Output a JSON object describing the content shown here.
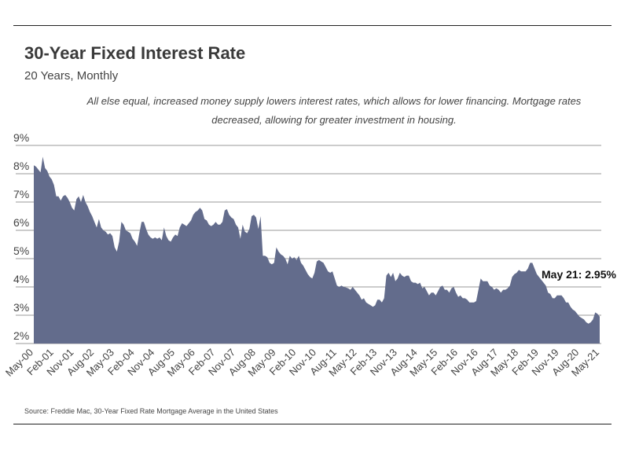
{
  "header": {
    "title": "30-Year Fixed Interest Rate",
    "subtitle": "20 Years, Monthly",
    "note": "All else equal, increased money supply lowers interest rates, which allows for lower financing. Mortgage rates decreased, allowing for greater investment in housing."
  },
  "footer": {
    "source": "Source:  Freddie Mac, 30-Year Fixed Rate Mortgage Average in the United States"
  },
  "colors": {
    "area_fill": "#636c8c",
    "gridline": "#999999",
    "rule": "#222222"
  },
  "chart_data": {
    "type": "area",
    "title": "30-Year Fixed Interest Rate",
    "subtitle": "20 Years, Monthly",
    "ylim": [
      2,
      9
    ],
    "y_ticks": [
      "9%",
      "8%",
      "7%",
      "6%",
      "5%",
      "4%",
      "3%",
      "2%"
    ],
    "y_tick_values": [
      9,
      8,
      7,
      6,
      5,
      4,
      3,
      2
    ],
    "x_ticks": [
      "May-00",
      "Feb-01",
      "Nov-01",
      "Aug-02",
      "May-03",
      "Feb-04",
      "Nov-04",
      "Aug-05",
      "May-06",
      "Feb-07",
      "Nov-07",
      "Aug-08",
      "May-09",
      "Feb-10",
      "Nov-10",
      "Aug-11",
      "May-12",
      "Feb-13",
      "Nov-13",
      "Aug-14",
      "May-15",
      "Feb-16",
      "Nov-16",
      "Aug-17",
      "May-18",
      "Feb-19",
      "Nov-19",
      "Aug-20",
      "May-21"
    ],
    "grid": "horizontal",
    "annotation": {
      "label": "May 21: 2.95%",
      "x": "May-21",
      "y": 2.95
    },
    "series": [
      {
        "points": [
          [
            "May-00",
            8.3
          ],
          [
            "Jun-00",
            8.25
          ],
          [
            "Jul-00",
            8.15
          ],
          [
            "Aug-00",
            8.05
          ],
          [
            "Sep-00",
            8.6
          ],
          [
            "Oct-00",
            8.2
          ],
          [
            "Nov-00",
            8.1
          ],
          [
            "Dec-00",
            7.9
          ],
          [
            "Jan-01",
            7.8
          ],
          [
            "Feb-01",
            7.6
          ],
          [
            "Mar-01",
            7.2
          ],
          [
            "Apr-01",
            7.2
          ],
          [
            "May-01",
            7.05
          ],
          [
            "Jun-01",
            7.2
          ],
          [
            "Jul-01",
            7.25
          ],
          [
            "Aug-01",
            7.15
          ],
          [
            "Sep-01",
            7.0
          ],
          [
            "Oct-01",
            6.8
          ],
          [
            "Nov-01",
            6.7
          ],
          [
            "Dec-01",
            7.1
          ],
          [
            "Jan-02",
            7.2
          ],
          [
            "Feb-02",
            7.0
          ],
          [
            "Mar-02",
            7.25
          ],
          [
            "Apr-02",
            7.0
          ],
          [
            "May-02",
            6.85
          ],
          [
            "Jun-02",
            6.65
          ],
          [
            "Jul-02",
            6.5
          ],
          [
            "Aug-02",
            6.3
          ],
          [
            "Sep-02",
            6.1
          ],
          [
            "Oct-02",
            6.4
          ],
          [
            "Nov-02",
            6.1
          ],
          [
            "Dec-02",
            6.0
          ],
          [
            "Jan-03",
            5.95
          ],
          [
            "Feb-03",
            5.85
          ],
          [
            "Mar-03",
            5.9
          ],
          [
            "Apr-03",
            5.8
          ],
          [
            "May-03",
            5.4
          ],
          [
            "Jun-03",
            5.25
          ],
          [
            "Jul-03",
            5.6
          ],
          [
            "Aug-03",
            6.3
          ],
          [
            "Sep-03",
            6.2
          ],
          [
            "Oct-03",
            6.0
          ],
          [
            "Nov-03",
            5.95
          ],
          [
            "Dec-03",
            5.9
          ],
          [
            "Jan-04",
            5.7
          ],
          [
            "Feb-04",
            5.6
          ],
          [
            "Mar-04",
            5.45
          ],
          [
            "Apr-04",
            5.9
          ],
          [
            "May-04",
            6.3
          ],
          [
            "Jun-04",
            6.3
          ],
          [
            "Jul-04",
            6.05
          ],
          [
            "Aug-04",
            5.85
          ],
          [
            "Sep-04",
            5.75
          ],
          [
            "Oct-04",
            5.7
          ],
          [
            "Nov-04",
            5.75
          ],
          [
            "Dec-04",
            5.7
          ],
          [
            "Jan-05",
            5.75
          ],
          [
            "Feb-05",
            5.65
          ],
          [
            "Mar-05",
            6.1
          ],
          [
            "Apr-05",
            5.8
          ],
          [
            "May-05",
            5.65
          ],
          [
            "Jun-05",
            5.6
          ],
          [
            "Jul-05",
            5.75
          ],
          [
            "Aug-05",
            5.85
          ],
          [
            "Sep-05",
            5.8
          ],
          [
            "Oct-05",
            6.1
          ],
          [
            "Nov-05",
            6.25
          ],
          [
            "Dec-05",
            6.2
          ],
          [
            "Jan-06",
            6.15
          ],
          [
            "Feb-06",
            6.25
          ],
          [
            "Mar-06",
            6.35
          ],
          [
            "Apr-06",
            6.55
          ],
          [
            "May-06",
            6.65
          ],
          [
            "Jun-06",
            6.7
          ],
          [
            "Jul-06",
            6.8
          ],
          [
            "Aug-06",
            6.7
          ],
          [
            "Sep-06",
            6.4
          ],
          [
            "Oct-06",
            6.35
          ],
          [
            "Nov-06",
            6.2
          ],
          [
            "Dec-06",
            6.15
          ],
          [
            "Jan-07",
            6.2
          ],
          [
            "Feb-07",
            6.3
          ],
          [
            "Mar-07",
            6.2
          ],
          [
            "Apr-07",
            6.2
          ],
          [
            "May-07",
            6.3
          ],
          [
            "Jun-07",
            6.7
          ],
          [
            "Jul-07",
            6.75
          ],
          [
            "Aug-07",
            6.55
          ],
          [
            "Sep-07",
            6.45
          ],
          [
            "Oct-07",
            6.4
          ],
          [
            "Nov-07",
            6.2
          ],
          [
            "Dec-07",
            6.1
          ],
          [
            "Jan-08",
            5.7
          ],
          [
            "Feb-08",
            6.2
          ],
          [
            "Mar-08",
            5.95
          ],
          [
            "Apr-08",
            5.9
          ],
          [
            "May-08",
            6.05
          ],
          [
            "Jun-08",
            6.5
          ],
          [
            "Jul-08",
            6.55
          ],
          [
            "Aug-08",
            6.45
          ],
          [
            "Sep-08",
            6.05
          ],
          [
            "Oct-08",
            6.5
          ],
          [
            "Nov-08",
            5.1
          ],
          [
            "Dec-08",
            5.1
          ],
          [
            "Jan-09",
            5.05
          ],
          [
            "Feb-09",
            4.85
          ],
          [
            "Mar-09",
            4.8
          ],
          [
            "Apr-09",
            4.85
          ],
          [
            "May-09",
            5.4
          ],
          [
            "Jun-09",
            5.25
          ],
          [
            "Jul-09",
            5.15
          ],
          [
            "Aug-09",
            5.1
          ],
          [
            "Sep-09",
            5.0
          ],
          [
            "Oct-09",
            4.8
          ],
          [
            "Nov-09",
            5.1
          ],
          [
            "Dec-09",
            5.0
          ],
          [
            "Jan-10",
            5.05
          ],
          [
            "Feb-10",
            4.95
          ],
          [
            "Mar-10",
            5.1
          ],
          [
            "Apr-10",
            4.85
          ],
          [
            "May-10",
            4.75
          ],
          [
            "Jun-10",
            4.6
          ],
          [
            "Jul-10",
            4.45
          ],
          [
            "Aug-10",
            4.35
          ],
          [
            "Sep-10",
            4.3
          ],
          [
            "Oct-10",
            4.5
          ],
          [
            "Nov-10",
            4.9
          ],
          [
            "Dec-10",
            4.95
          ],
          [
            "Jan-11",
            4.9
          ],
          [
            "Feb-11",
            4.85
          ],
          [
            "Mar-11",
            4.7
          ],
          [
            "Apr-11",
            4.55
          ],
          [
            "May-11",
            4.5
          ],
          [
            "Jun-11",
            4.55
          ],
          [
            "Jul-11",
            4.3
          ],
          [
            "Aug-11",
            4.05
          ],
          [
            "Sep-11",
            4.0
          ],
          [
            "Oct-11",
            4.05
          ],
          [
            "Nov-11",
            4.0
          ],
          [
            "Dec-11",
            3.98
          ],
          [
            "Jan-12",
            3.95
          ],
          [
            "Feb-12",
            3.9
          ],
          [
            "Mar-12",
            4.0
          ],
          [
            "Apr-12",
            3.9
          ],
          [
            "May-12",
            3.8
          ],
          [
            "Jun-12",
            3.7
          ],
          [
            "Jul-12",
            3.55
          ],
          [
            "Aug-12",
            3.6
          ],
          [
            "Sep-12",
            3.45
          ],
          [
            "Oct-12",
            3.4
          ],
          [
            "Nov-12",
            3.35
          ],
          [
            "Dec-12",
            3.3
          ],
          [
            "Jan-13",
            3.35
          ],
          [
            "Feb-13",
            3.55
          ],
          [
            "Mar-13",
            3.55
          ],
          [
            "Apr-13",
            3.45
          ],
          [
            "May-13",
            3.6
          ],
          [
            "Jun-13",
            4.4
          ],
          [
            "Jul-13",
            4.5
          ],
          [
            "Aug-13",
            4.35
          ],
          [
            "Sep-13",
            4.5
          ],
          [
            "Oct-13",
            4.2
          ],
          [
            "Nov-13",
            4.3
          ],
          [
            "Dec-13",
            4.5
          ],
          [
            "Jan-14",
            4.4
          ],
          [
            "Feb-14",
            4.35
          ],
          [
            "Mar-14",
            4.4
          ],
          [
            "Apr-14",
            4.4
          ],
          [
            "May-14",
            4.2
          ],
          [
            "Jun-14",
            4.15
          ],
          [
            "Jul-14",
            4.15
          ],
          [
            "Aug-14",
            4.1
          ],
          [
            "Sep-14",
            4.15
          ],
          [
            "Oct-14",
            3.95
          ],
          [
            "Nov-14",
            4.0
          ],
          [
            "Dec-14",
            3.85
          ],
          [
            "Jan-15",
            3.7
          ],
          [
            "Feb-15",
            3.8
          ],
          [
            "Mar-15",
            3.8
          ],
          [
            "Apr-15",
            3.7
          ],
          [
            "May-15",
            3.85
          ],
          [
            "Jun-15",
            4.0
          ],
          [
            "Jul-15",
            4.05
          ],
          [
            "Aug-15",
            3.9
          ],
          [
            "Sep-15",
            3.9
          ],
          [
            "Oct-15",
            3.8
          ],
          [
            "Nov-15",
            3.95
          ],
          [
            "Dec-15",
            4.0
          ],
          [
            "Jan-16",
            3.8
          ],
          [
            "Feb-16",
            3.65
          ],
          [
            "Mar-16",
            3.7
          ],
          [
            "Apr-16",
            3.6
          ],
          [
            "May-16",
            3.6
          ],
          [
            "Jun-16",
            3.55
          ],
          [
            "Jul-16",
            3.45
          ],
          [
            "Aug-16",
            3.45
          ],
          [
            "Sep-16",
            3.45
          ],
          [
            "Oct-16",
            3.5
          ],
          [
            "Nov-16",
            3.9
          ],
          [
            "Dec-16",
            4.3
          ],
          [
            "Jan-17",
            4.2
          ],
          [
            "Feb-17",
            4.2
          ],
          [
            "Mar-17",
            4.2
          ],
          [
            "Apr-17",
            4.05
          ],
          [
            "May-17",
            4.0
          ],
          [
            "Jun-17",
            3.9
          ],
          [
            "Jul-17",
            3.95
          ],
          [
            "Aug-17",
            3.9
          ],
          [
            "Sep-17",
            3.8
          ],
          [
            "Oct-17",
            3.9
          ],
          [
            "Nov-17",
            3.9
          ],
          [
            "Dec-17",
            3.95
          ],
          [
            "Jan-18",
            4.05
          ],
          [
            "Feb-18",
            4.35
          ],
          [
            "Mar-18",
            4.45
          ],
          [
            "Apr-18",
            4.5
          ],
          [
            "May-18",
            4.6
          ],
          [
            "Jun-18",
            4.55
          ],
          [
            "Jul-18",
            4.55
          ],
          [
            "Aug-18",
            4.55
          ],
          [
            "Sep-18",
            4.65
          ],
          [
            "Oct-18",
            4.85
          ],
          [
            "Nov-18",
            4.85
          ],
          [
            "Dec-18",
            4.65
          ],
          [
            "Jan-19",
            4.45
          ],
          [
            "Feb-19",
            4.35
          ],
          [
            "Mar-19",
            4.25
          ],
          [
            "Apr-19",
            4.15
          ],
          [
            "May-19",
            4.05
          ],
          [
            "Jun-19",
            3.8
          ],
          [
            "Jul-19",
            3.75
          ],
          [
            "Aug-19",
            3.6
          ],
          [
            "Sep-19",
            3.6
          ],
          [
            "Oct-19",
            3.7
          ],
          [
            "Nov-19",
            3.7
          ],
          [
            "Dec-19",
            3.7
          ],
          [
            "Jan-20",
            3.6
          ],
          [
            "Feb-20",
            3.45
          ],
          [
            "Mar-20",
            3.45
          ],
          [
            "Apr-20",
            3.3
          ],
          [
            "May-20",
            3.2
          ],
          [
            "Jun-20",
            3.15
          ],
          [
            "Jul-20",
            3.05
          ],
          [
            "Aug-20",
            2.95
          ],
          [
            "Sep-20",
            2.9
          ],
          [
            "Oct-20",
            2.85
          ],
          [
            "Nov-20",
            2.75
          ],
          [
            "Dec-20",
            2.7
          ],
          [
            "Jan-21",
            2.75
          ],
          [
            "Feb-21",
            2.85
          ],
          [
            "Mar-21",
            3.1
          ],
          [
            "Apr-21",
            3.05
          ],
          [
            "May-21",
            2.95
          ]
        ]
      }
    ]
  }
}
